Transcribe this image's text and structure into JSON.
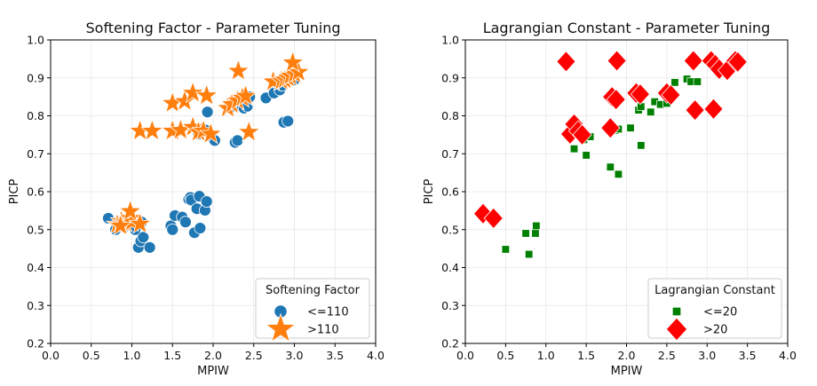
{
  "chart_data": [
    {
      "type": "scatter",
      "title": "Softening Factor - Parameter Tuning",
      "xlabel": "MPIW",
      "ylabel": "PICP",
      "xlim": [
        0.0,
        4.0
      ],
      "ylim": [
        0.2,
        1.0
      ],
      "xticks": [
        "0.0",
        "0.5",
        "1.0",
        "1.5",
        "2.0",
        "2.5",
        "3.0",
        "3.5",
        "4.0"
      ],
      "yticks": [
        "0.2",
        "0.3",
        "0.4",
        "0.5",
        "0.6",
        "0.7",
        "0.8",
        "0.9",
        "1.0"
      ],
      "grid": true,
      "legend": {
        "title": "Softening Factor",
        "placement": "lower-right"
      },
      "series": [
        {
          "name": "<=110",
          "marker": "circle",
          "color": "#1f77b4",
          "points": [
            [
              0.71,
              0.53
            ],
            [
              0.8,
              0.5
            ],
            [
              0.83,
              0.52
            ],
            [
              0.88,
              0.52
            ],
            [
              0.93,
              0.51
            ],
            [
              1.08,
              0.453
            ],
            [
              1.11,
              0.47
            ],
            [
              1.14,
              0.48
            ],
            [
              1.22,
              0.453
            ],
            [
              1.04,
              0.5
            ],
            [
              1.12,
              0.52
            ],
            [
              1.48,
              0.51
            ],
            [
              1.5,
              0.5
            ],
            [
              1.53,
              0.537
            ],
            [
              1.62,
              0.533
            ],
            [
              1.66,
              0.52
            ],
            [
              1.7,
              0.58
            ],
            [
              1.72,
              0.585
            ],
            [
              1.73,
              0.578
            ],
            [
              1.77,
              0.492
            ],
            [
              1.8,
              0.555
            ],
            [
              1.83,
              0.588
            ],
            [
              1.84,
              0.504
            ],
            [
              1.9,
              0.551
            ],
            [
              1.92,
              0.574
            ],
            [
              1.82,
              0.752
            ],
            [
              1.85,
              0.76
            ],
            [
              1.9,
              0.763
            ],
            [
              1.93,
              0.81
            ],
            [
              1.98,
              0.745
            ],
            [
              2.02,
              0.735
            ],
            [
              2.2,
              0.82
            ],
            [
              2.27,
              0.73
            ],
            [
              2.3,
              0.735
            ],
            [
              2.33,
              0.83
            ],
            [
              2.38,
              0.82
            ],
            [
              2.42,
              0.825
            ],
            [
              2.45,
              0.85
            ],
            [
              2.65,
              0.847
            ],
            [
              2.75,
              0.86
            ],
            [
              2.82,
              0.868
            ],
            [
              2.87,
              0.783
            ],
            [
              2.92,
              0.786
            ],
            [
              2.85,
              0.88
            ],
            [
              2.9,
              0.89
            ],
            [
              2.95,
              0.9
            ],
            [
              3.0,
              0.895
            ]
          ]
        },
        {
          "name": ">110",
          "marker": "star",
          "color": "#ff7f0e",
          "points": [
            [
              0.82,
              0.513
            ],
            [
              0.87,
              0.522
            ],
            [
              0.92,
              0.518
            ],
            [
              0.98,
              0.53
            ],
            [
              1.0,
              0.52
            ],
            [
              1.1,
              0.515
            ],
            [
              0.98,
              0.548
            ],
            [
              0.86,
              0.51
            ],
            [
              1.1,
              0.76
            ],
            [
              1.25,
              0.76
            ],
            [
              1.5,
              0.76
            ],
            [
              1.6,
              0.762
            ],
            [
              1.75,
              0.77
            ],
            [
              1.82,
              0.757
            ],
            [
              1.88,
              0.76
            ],
            [
              1.97,
              0.752
            ],
            [
              1.5,
              0.833
            ],
            [
              1.65,
              0.838
            ],
            [
              1.75,
              0.86
            ],
            [
              1.92,
              0.853
            ],
            [
              2.18,
              0.82
            ],
            [
              2.23,
              0.83
            ],
            [
              2.3,
              0.84
            ],
            [
              2.36,
              0.847
            ],
            [
              2.4,
              0.852
            ],
            [
              2.44,
              0.757
            ],
            [
              2.31,
              0.918
            ],
            [
              2.74,
              0.89
            ],
            [
              2.84,
              0.892
            ],
            [
              2.88,
              0.895
            ],
            [
              2.92,
              0.9
            ],
            [
              2.95,
              0.905
            ],
            [
              3.0,
              0.91
            ],
            [
              3.05,
              0.915
            ],
            [
              2.98,
              0.94
            ]
          ]
        }
      ]
    },
    {
      "type": "scatter",
      "title": "Lagrangian Constant - Parameter Tuning",
      "xlabel": "MPIW",
      "ylabel": "PICP",
      "xlim": [
        0.0,
        4.0
      ],
      "ylim": [
        0.2,
        1.0
      ],
      "xticks": [
        "0.0",
        "0.5",
        "1.0",
        "1.5",
        "2.0",
        "2.5",
        "3.0",
        "3.5",
        "4.0"
      ],
      "yticks": [
        "0.2",
        "0.3",
        "0.4",
        "0.5",
        "0.6",
        "0.7",
        "0.8",
        "0.9",
        "1.0"
      ],
      "grid": true,
      "legend": {
        "title": "Lagrangian Constant",
        "placement": "lower-right"
      },
      "series": [
        {
          "name": "<=20",
          "marker": "square",
          "color": "#008000",
          "points": [
            [
              0.5,
              0.448
            ],
            [
              0.75,
              0.49
            ],
            [
              0.79,
              0.435
            ],
            [
              0.87,
              0.49
            ],
            [
              0.88,
              0.51
            ],
            [
              1.35,
              0.713
            ],
            [
              1.47,
              0.737
            ],
            [
              1.5,
              0.696
            ],
            [
              1.55,
              0.745
            ],
            [
              1.8,
              0.665
            ],
            [
              1.86,
              0.762
            ],
            [
              1.9,
              0.765
            ],
            [
              1.9,
              0.646
            ],
            [
              2.05,
              0.768
            ],
            [
              2.15,
              0.815
            ],
            [
              2.18,
              0.824
            ],
            [
              2.18,
              0.722
            ],
            [
              2.3,
              0.81
            ],
            [
              2.35,
              0.837
            ],
            [
              2.42,
              0.83
            ],
            [
              2.5,
              0.833
            ],
            [
              2.6,
              0.888
            ],
            [
              2.75,
              0.897
            ],
            [
              2.8,
              0.89
            ],
            [
              2.88,
              0.89
            ]
          ]
        },
        {
          "name": ">20",
          "marker": "diamond",
          "color": "#ff0000",
          "points": [
            [
              0.22,
              0.542
            ],
            [
              0.35,
              0.53
            ],
            [
              1.25,
              0.943
            ],
            [
              1.3,
              0.752
            ],
            [
              1.35,
              0.778
            ],
            [
              1.4,
              0.76
            ],
            [
              1.45,
              0.75
            ],
            [
              1.8,
              0.768
            ],
            [
              1.82,
              0.85
            ],
            [
              1.87,
              0.843
            ],
            [
              1.88,
              0.945
            ],
            [
              2.12,
              0.86
            ],
            [
              2.17,
              0.857
            ],
            [
              2.5,
              0.86
            ],
            [
              2.55,
              0.855
            ],
            [
              2.83,
              0.945
            ],
            [
              2.85,
              0.815
            ],
            [
              3.05,
              0.945
            ],
            [
              3.08,
              0.818
            ],
            [
              3.1,
              0.935
            ],
            [
              3.15,
              0.923
            ],
            [
              3.25,
              0.92
            ],
            [
              3.35,
              0.945
            ],
            [
              3.38,
              0.942
            ]
          ]
        }
      ]
    }
  ]
}
